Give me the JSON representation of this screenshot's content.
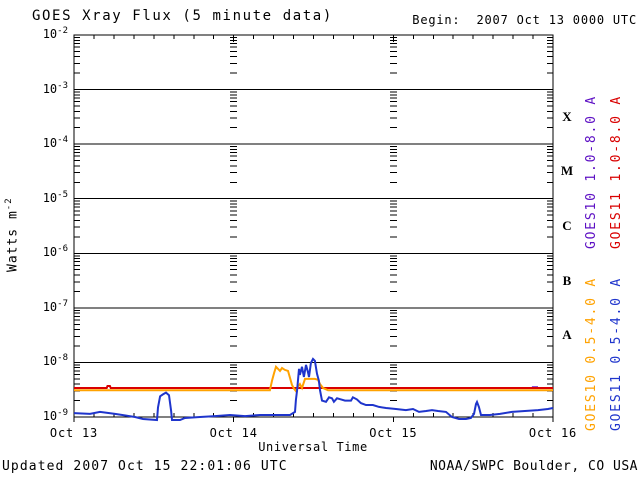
{
  "header": {
    "title": "GOES Xray Flux (5 minute data)",
    "begin_label": "Begin:  2007 Oct 13 0000 UTC"
  },
  "footer": {
    "updated": "Updated 2007 Oct 15 22:01:06 UTC",
    "credit": "NOAA/SWPC Boulder, CO USA"
  },
  "chart_data": {
    "type": "line",
    "title": "GOES Xray Flux (5 minute data)",
    "xlabel": "Universal Time",
    "ylabel": "Watts m^-2",
    "ylabel_base": "Watts m",
    "ylabel_exp": "-2",
    "x_unit": "days since 2007 Oct 13 0000 UTC",
    "xlim": [
      0,
      3
    ],
    "xticks": [
      "Oct 13",
      "Oct 14",
      "Oct 15",
      "Oct 16"
    ],
    "yscale": "log",
    "ylim": [
      1e-09,
      0.01
    ],
    "ytick_exponents": [
      -2,
      -3,
      -4,
      -5,
      -6,
      -7,
      -8,
      -9
    ],
    "flare_class_labels": [
      "X",
      "M",
      "C",
      "B",
      "A"
    ],
    "grid": "solid horizontal line per decade; minor log-tick columns at day boundaries; 3-hour ticks on top and bottom axes",
    "legend_position": "right, rotated 90deg",
    "colors": {
      "goes10_long": "#5d10c4",
      "goes11_long": "#d90000",
      "goes10_short": "#ffa200",
      "goes11_short": "#1f35cc",
      "axis": "#000000"
    },
    "series": [
      {
        "name": "GOES10 1.0-8.0 A",
        "color_key": "goes10_long",
        "points": [
          [
            2.868,
            3.5e-09
          ],
          [
            2.906,
            3.5e-09
          ]
        ]
      },
      {
        "name": "GOES11 1.0-8.0 A",
        "color_key": "goes11_long",
        "points": [
          [
            0.0,
            3.4e-09
          ],
          [
            0.205,
            3.4e-09
          ],
          [
            0.21,
            3.7e-09
          ],
          [
            0.225,
            3.7e-09
          ],
          [
            0.23,
            3.4e-09
          ],
          [
            3.0,
            3.4e-09
          ]
        ]
      },
      {
        "name": "GOES10 0.5-4.0 A",
        "color_key": "goes10_short",
        "points": [
          [
            0.0,
            3.1e-09
          ],
          [
            0.6,
            3.1e-09
          ],
          [
            1.0,
            3.1e-09
          ],
          [
            1.227,
            3.1e-09
          ],
          [
            1.24,
            4.6e-09
          ],
          [
            1.253,
            6.4e-09
          ],
          [
            1.265,
            8.3e-09
          ],
          [
            1.278,
            7.6e-09
          ],
          [
            1.29,
            7e-09
          ],
          [
            1.303,
            7.9e-09
          ],
          [
            1.321,
            7.3e-09
          ],
          [
            1.34,
            7e-09
          ],
          [
            1.353,
            5.2e-09
          ],
          [
            1.365,
            3.9e-09
          ],
          [
            1.378,
            3.3e-09
          ],
          [
            1.39,
            3e-09
          ],
          [
            1.403,
            3.6e-09
          ],
          [
            1.415,
            4e-09
          ],
          [
            1.428,
            3.4e-09
          ],
          [
            1.447,
            5e-09
          ],
          [
            1.478,
            5e-09
          ],
          [
            1.509,
            5e-09
          ],
          [
            1.528,
            4.8e-09
          ],
          [
            1.541,
            4e-09
          ],
          [
            1.56,
            3.4e-09
          ],
          [
            1.591,
            3.1e-09
          ],
          [
            2.0,
            3.1e-09
          ],
          [
            2.5,
            3.1e-09
          ],
          [
            3.0,
            3.1e-09
          ]
        ]
      },
      {
        "name": "GOES11 0.5-4.0 A",
        "color_key": "goes11_short",
        "points": [
          [
            0.0,
            1.18e-09
          ],
          [
            0.1,
            1.14e-09
          ],
          [
            0.163,
            1.24e-09
          ],
          [
            0.257,
            1.14e-09
          ],
          [
            0.382,
            1e-09
          ],
          [
            0.432,
            9.2e-10
          ],
          [
            0.52,
            8.8e-10
          ],
          [
            0.526,
            1.5e-09
          ],
          [
            0.539,
            2.4e-09
          ],
          [
            0.557,
            2.6e-09
          ],
          [
            0.576,
            2.8e-09
          ],
          [
            0.595,
            2.5e-09
          ],
          [
            0.608,
            1.3e-09
          ],
          [
            0.614,
            8.8e-10
          ],
          [
            0.664,
            8.8e-10
          ],
          [
            0.695,
            9.6e-10
          ],
          [
            0.789,
            1e-09
          ],
          [
            0.883,
            1.04e-09
          ],
          [
            0.977,
            1.09e-09
          ],
          [
            1.071,
            1.04e-09
          ],
          [
            1.165,
            1.09e-09
          ],
          [
            1.259,
            1.09e-09
          ],
          [
            1.353,
            1.09e-09
          ],
          [
            1.384,
            1.24e-09
          ],
          [
            1.39,
            2.05e-09
          ],
          [
            1.397,
            3.1e-09
          ],
          [
            1.409,
            7.6e-09
          ],
          [
            1.415,
            5.9e-09
          ],
          [
            1.428,
            8.3e-09
          ],
          [
            1.44,
            5.4e-09
          ],
          [
            1.453,
            9e-09
          ],
          [
            1.465,
            6.7e-09
          ],
          [
            1.472,
            5.4e-09
          ],
          [
            1.484,
            9.8e-09
          ],
          [
            1.497,
            1.16e-08
          ],
          [
            1.509,
            1.07e-08
          ],
          [
            1.522,
            6.2e-09
          ],
          [
            1.534,
            4.6e-09
          ],
          [
            1.541,
            3.1e-09
          ],
          [
            1.553,
            2e-09
          ],
          [
            1.578,
            1.9e-09
          ],
          [
            1.597,
            2.3e-09
          ],
          [
            1.616,
            2.2e-09
          ],
          [
            1.628,
            1.9e-09
          ],
          [
            1.647,
            2.2e-09
          ],
          [
            1.672,
            2.1e-09
          ],
          [
            1.697,
            2e-09
          ],
          [
            1.735,
            2e-09
          ],
          [
            1.747,
            2.3e-09
          ],
          [
            1.772,
            2.1e-09
          ],
          [
            1.797,
            1.8e-09
          ],
          [
            1.829,
            1.66e-09
          ],
          [
            1.872,
            1.66e-09
          ],
          [
            1.91,
            1.53e-09
          ],
          [
            1.954,
            1.46e-09
          ],
          [
            2.017,
            1.4e-09
          ],
          [
            2.079,
            1.34e-09
          ],
          [
            2.123,
            1.4e-09
          ],
          [
            2.161,
            1.24e-09
          ],
          [
            2.205,
            1.29e-09
          ],
          [
            2.242,
            1.34e-09
          ],
          [
            2.28,
            1.29e-09
          ],
          [
            2.33,
            1.24e-09
          ],
          [
            2.367,
            1e-09
          ],
          [
            2.411,
            9.2e-10
          ],
          [
            2.455,
            9.2e-10
          ],
          [
            2.486,
            9.6e-10
          ],
          [
            2.505,
            1.14e-09
          ],
          [
            2.518,
            1.73e-09
          ],
          [
            2.524,
            1.88e-09
          ],
          [
            2.536,
            1.53e-09
          ],
          [
            2.549,
            1.09e-09
          ],
          [
            2.605,
            1.09e-09
          ],
          [
            2.668,
            1.14e-09
          ],
          [
            2.743,
            1.24e-09
          ],
          [
            2.824,
            1.29e-09
          ],
          [
            2.906,
            1.34e-09
          ],
          [
            2.968,
            1.4e-09
          ],
          [
            3.0,
            1.46e-09
          ]
        ]
      }
    ],
    "legend_columns": [
      {
        "series": 0,
        "column": "inner-top"
      },
      {
        "series": 1,
        "column": "outer-top"
      },
      {
        "series": 2,
        "column": "inner-bottom"
      },
      {
        "series": 3,
        "column": "outer-bottom"
      }
    ]
  }
}
